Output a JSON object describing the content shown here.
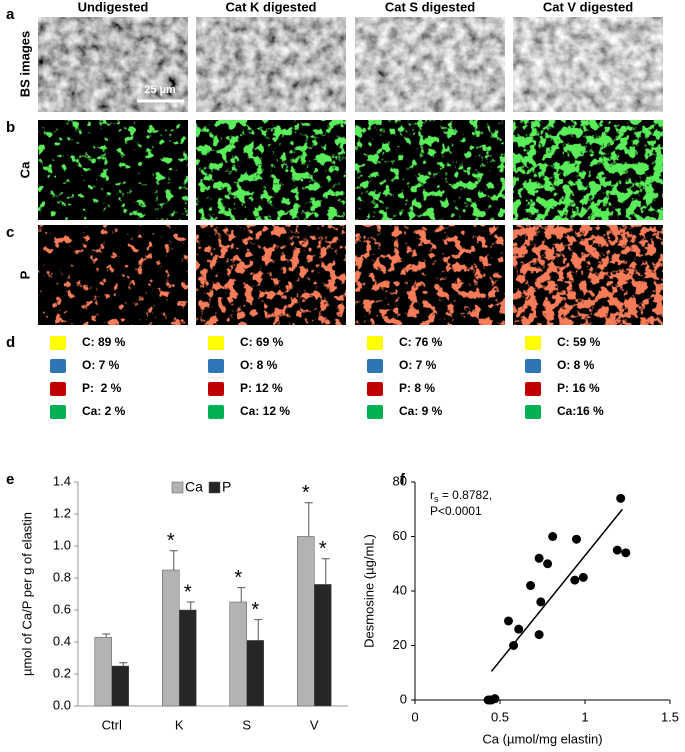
{
  "panel_labels": [
    "a",
    "b",
    "c",
    "d",
    "e",
    "f"
  ],
  "columns": [
    "Undigested",
    "Cat K digested",
    "Cat S digested",
    "Cat V digested"
  ],
  "row_labels": [
    "BS images",
    "Ca",
    "P"
  ],
  "scale_bar": "25 µm",
  "composition_colors": [
    "#ffff00",
    "#2e75b6",
    "#c00000",
    "#00b050"
  ],
  "composition": [
    [
      "C: 89 %",
      "O: 7 %",
      "P:  2 %",
      "Ca: 2 %"
    ],
    [
      "C: 69 %",
      "O: 8 %",
      "P: 12 %",
      "Ca: 12 %"
    ],
    [
      "C: 76 %",
      "O: 7 %",
      "P: 8 %",
      "Ca: 9 %"
    ],
    [
      "C: 59 %",
      "O: 8 %",
      "P: 16 %",
      "Ca:16 %"
    ]
  ],
  "chart_data": [
    {
      "type": "bar",
      "ylabel": "µmol of Ca/P per g of elastin",
      "categories": [
        "Ctrl",
        "K",
        "S",
        "V"
      ],
      "series": [
        {
          "name": "Ca",
          "color": "#b3b3b3",
          "values": [
            0.43,
            0.85,
            0.65,
            1.06
          ],
          "errors": [
            0.02,
            0.12,
            0.09,
            0.21
          ],
          "markers": [
            null,
            "*",
            "*",
            "*"
          ]
        },
        {
          "name": "P",
          "color": "#262626",
          "values": [
            0.25,
            0.6,
            0.41,
            0.76
          ],
          "errors": [
            0.02,
            0.05,
            0.13,
            0.16
          ],
          "markers": [
            null,
            "*",
            "*",
            "*"
          ]
        }
      ],
      "ylim": [
        0,
        1.4
      ],
      "yticks": [
        {
          "value": 0,
          "label": "0.0"
        },
        0.2,
        0.4,
        0.6,
        0.8,
        {
          "value": 1,
          "label": "1.0"
        },
        1.2,
        1.4
      ],
      "legend": "top"
    },
    {
      "type": "scatter",
      "xlabel": "Ca (µmol/mg elastin)",
      "ylabel": "Desmosine (µg/mL)",
      "color": "#000000",
      "x": [
        0.43,
        0.44,
        0.45,
        0.47,
        0.55,
        0.58,
        0.61,
        0.68,
        0.73,
        0.74,
        0.73,
        0.78,
        0.81,
        0.94,
        0.95,
        0.99,
        1.19,
        1.21,
        1.24
      ],
      "y": [
        0,
        0,
        0,
        0.5,
        29,
        20,
        26,
        42,
        24,
        36,
        52,
        50,
        60,
        44,
        59,
        45,
        55,
        74,
        54
      ],
      "trendline": {
        "x": [
          0.45,
          1.22
        ],
        "y": [
          10.5,
          70
        ]
      },
      "stat": {
        "symbol": "r",
        "subscript": "s",
        "text": " = 0.8782,",
        "p": "P<0.0001"
      },
      "xlim": [
        0,
        1.5
      ],
      "xticks": [
        0,
        0.5,
        1,
        1.5
      ],
      "ylim": [
        0,
        80
      ],
      "yticks": [
        0,
        20,
        40,
        60,
        80
      ]
    }
  ]
}
